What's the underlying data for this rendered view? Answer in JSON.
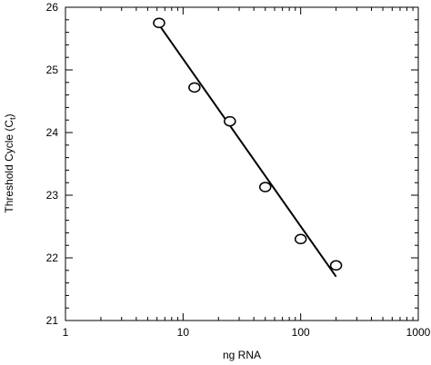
{
  "chart_data": {
    "type": "scatter",
    "xscale": "log",
    "xlim": [
      1,
      1000
    ],
    "ylim": [
      21,
      26
    ],
    "x_ticks": [
      1,
      10,
      100,
      1000
    ],
    "x_tick_labels": [
      "1",
      "10",
      "100",
      "1000"
    ],
    "y_ticks": [
      21,
      22,
      23,
      24,
      25,
      26
    ],
    "y_tick_labels": [
      "21",
      "22",
      "23",
      "24",
      "25",
      "26"
    ],
    "xlabel": "ng RNA",
    "ylabel_main": "Threshold Cycle (C",
    "ylabel_sub": "t",
    "ylabel_end": ")",
    "grid": false,
    "points": [
      {
        "x": 6.25,
        "y": 25.75
      },
      {
        "x": 12.5,
        "y": 24.72
      },
      {
        "x": 25,
        "y": 24.18
      },
      {
        "x": 50,
        "y": 23.13
      },
      {
        "x": 100,
        "y": 22.3
      },
      {
        "x": 200,
        "y": 21.88
      }
    ],
    "fit_line": {
      "x": [
        6.25,
        200
      ],
      "y": [
        25.72,
        21.7
      ]
    }
  }
}
